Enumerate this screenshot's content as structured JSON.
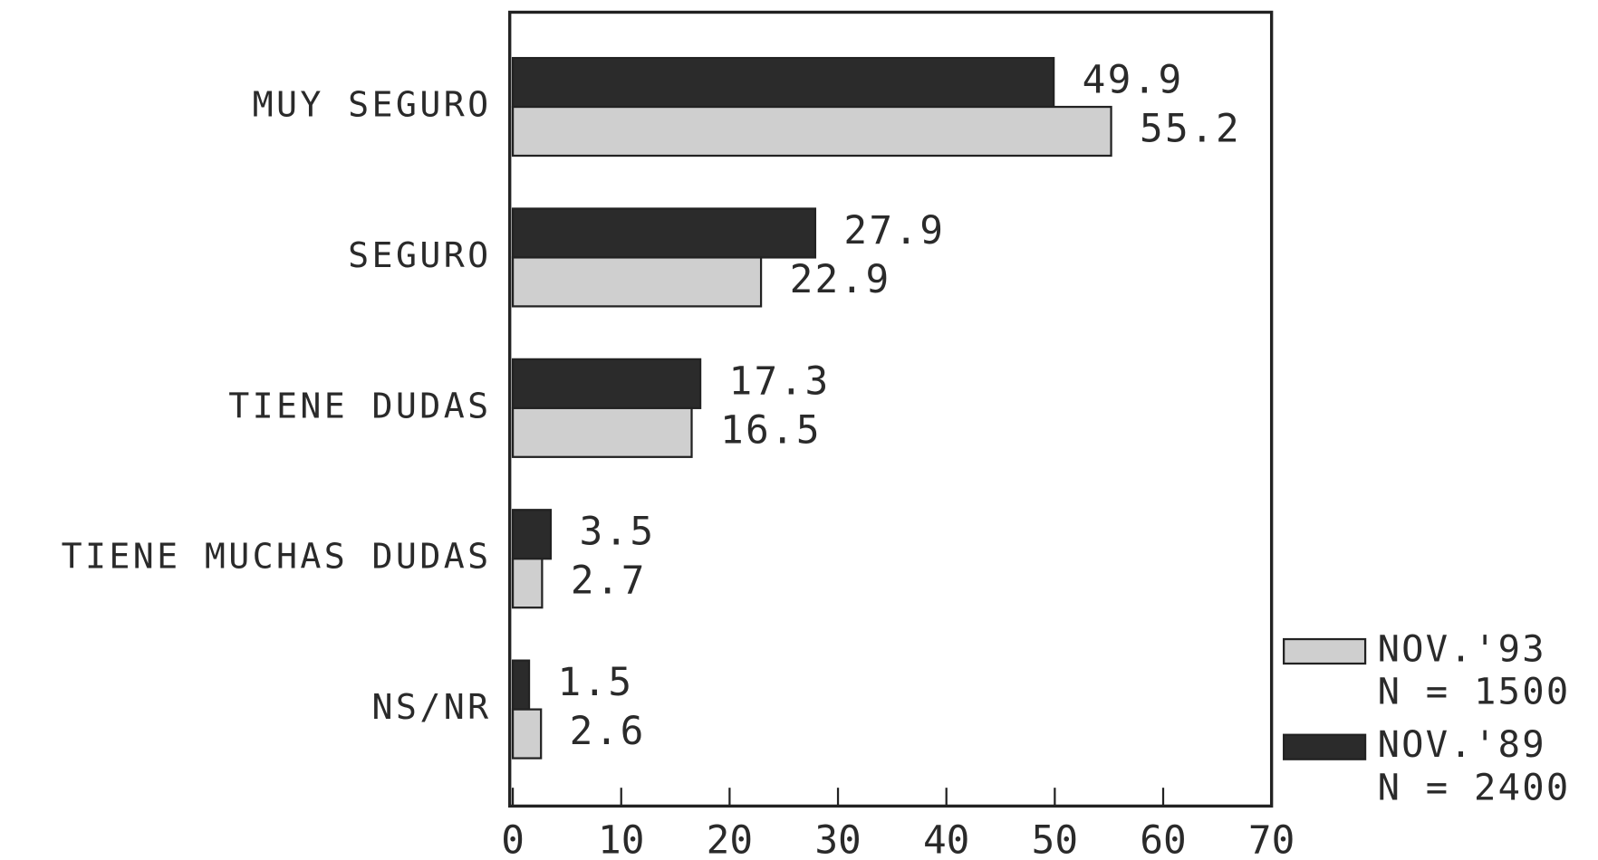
{
  "chart_data": {
    "type": "hbar",
    "categories": [
      "MUY SEGURO",
      "SEGURO",
      "TIENE DUDAS",
      "TIENE MUCHAS DUDAS",
      "NS/NR"
    ],
    "series": [
      {
        "name": "NOV.'89",
        "sample": "N = 2400",
        "color": "#2b2b2b",
        "values": [
          49.9,
          27.9,
          17.3,
          3.5,
          1.5
        ]
      },
      {
        "name": "NOV.'93",
        "sample": "N = 1500",
        "color": "#cfcfcf",
        "values": [
          55.2,
          22.9,
          16.5,
          2.7,
          2.6
        ]
      }
    ],
    "xlim": [
      0,
      70
    ],
    "xticks": [
      0,
      10,
      20,
      30,
      40,
      50,
      60,
      70
    ]
  }
}
